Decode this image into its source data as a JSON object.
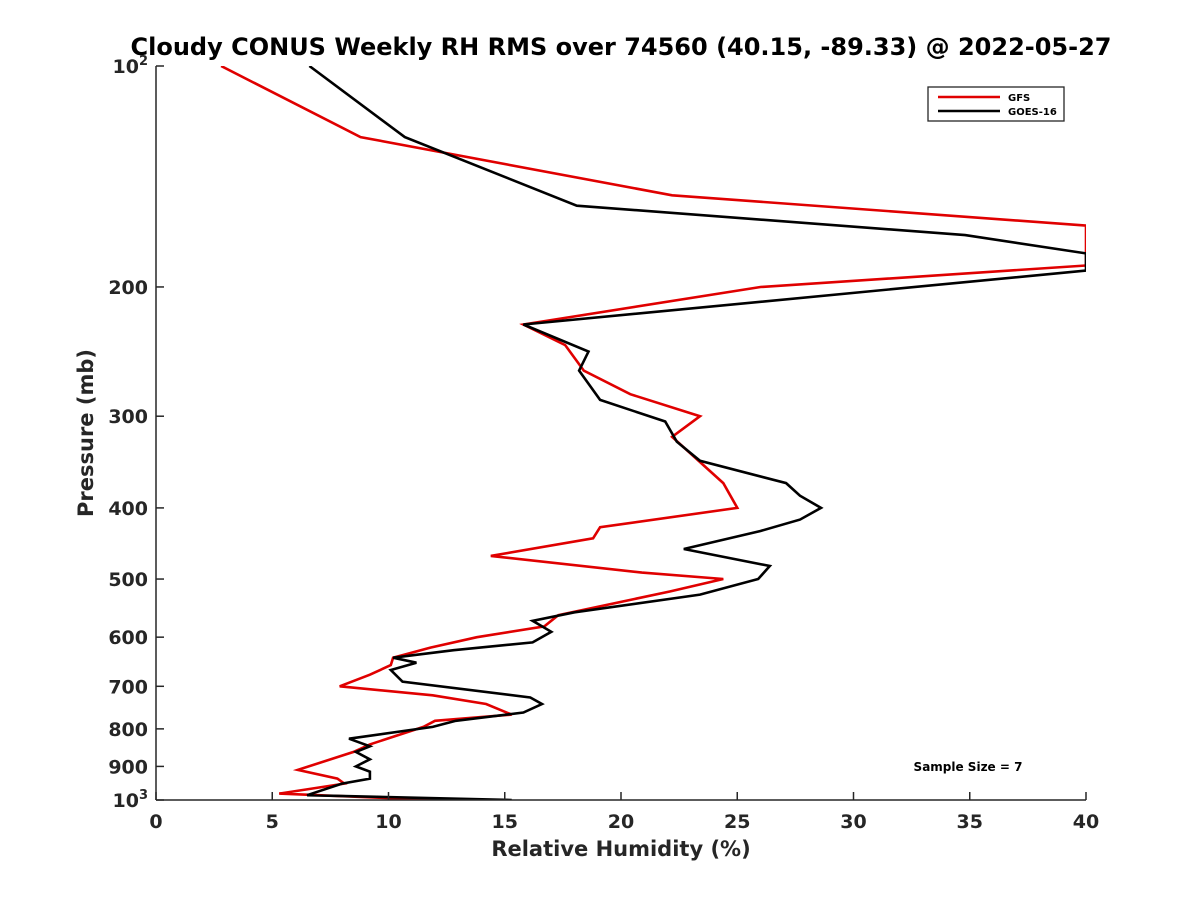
{
  "chart_data": {
    "type": "line",
    "title": "Cloudy CONUS Weekly RH RMS over 74560 (40.15, -89.33) @ 2022-05-27",
    "xlabel": "Relative Humidity (%)",
    "ylabel": "Pressure (mb)",
    "xlim": [
      0,
      40
    ],
    "ylim": [
      100,
      1000
    ],
    "y_scale": "log",
    "y_reversed": true,
    "grid": false,
    "legend_position": "top-right",
    "x_ticks": [
      "0",
      "5",
      "10",
      "15",
      "20",
      "25",
      "30",
      "35",
      "40"
    ],
    "y_ticks": [
      {
        "value": 100,
        "base": "10",
        "exp": "2"
      },
      {
        "value": 200,
        "label": "200"
      },
      {
        "value": 300,
        "label": "300"
      },
      {
        "value": 400,
        "label": "400"
      },
      {
        "value": 500,
        "label": "500"
      },
      {
        "value": 600,
        "label": "600"
      },
      {
        "value": 700,
        "label": "700"
      },
      {
        "value": 800,
        "label": "800"
      },
      {
        "value": 900,
        "label": "900"
      },
      {
        "value": 1000,
        "base": "10",
        "exp": "3"
      }
    ],
    "annotation": "Sample Size = 7",
    "series": [
      {
        "name": "GFS",
        "color": "#e00000",
        "points": [
          [
            2.8,
            100
          ],
          [
            8.8,
            125
          ],
          [
            22.2,
            150
          ],
          [
            40,
            165
          ],
          [
            40,
            187
          ],
          [
            26,
            200
          ],
          [
            15.8,
            225
          ],
          [
            17.6,
            240
          ],
          [
            18.4,
            260
          ],
          [
            20.4,
            280
          ],
          [
            23.4,
            300
          ],
          [
            22.2,
            320
          ],
          [
            24.4,
            370
          ],
          [
            25,
            400
          ],
          [
            19.1,
            425
          ],
          [
            18.8,
            440
          ],
          [
            14.4,
            465
          ],
          [
            20.9,
            490
          ],
          [
            24.4,
            500
          ],
          [
            22.1,
            520
          ],
          [
            17.3,
            560
          ],
          [
            16.7,
            580
          ],
          [
            13.8,
            600
          ],
          [
            11.8,
            620
          ],
          [
            10.2,
            640
          ],
          [
            10.1,
            655
          ],
          [
            9.2,
            675
          ],
          [
            7.9,
            700
          ],
          [
            11.9,
            720
          ],
          [
            14.2,
            740
          ],
          [
            15.3,
            765
          ],
          [
            12,
            780
          ],
          [
            11.5,
            795
          ],
          [
            9.2,
            840
          ],
          [
            8.5,
            860
          ],
          [
            6.1,
            910
          ],
          [
            7.8,
            935
          ],
          [
            8.1,
            950
          ],
          [
            5.3,
            980
          ],
          [
            12,
            1000
          ]
        ]
      },
      {
        "name": "GOES-16",
        "color": "#000000",
        "points": [
          [
            6.6,
            100
          ],
          [
            10.7,
            125
          ],
          [
            18.1,
            155
          ],
          [
            34.8,
            170
          ],
          [
            40,
            180
          ],
          [
            40,
            190
          ],
          [
            15.8,
            225
          ],
          [
            18.6,
            245
          ],
          [
            18.2,
            260
          ],
          [
            19.1,
            285
          ],
          [
            21.9,
            305
          ],
          [
            22.4,
            325
          ],
          [
            23.4,
            345
          ],
          [
            27.1,
            370
          ],
          [
            27.7,
            385
          ],
          [
            28.6,
            400
          ],
          [
            27.7,
            415
          ],
          [
            26,
            430
          ],
          [
            22.7,
            455
          ],
          [
            26.4,
            480
          ],
          [
            25.9,
            500
          ],
          [
            23.4,
            525
          ],
          [
            18,
            555
          ],
          [
            16.2,
            570
          ],
          [
            17,
            590
          ],
          [
            16.2,
            610
          ],
          [
            12.8,
            625
          ],
          [
            10.2,
            640
          ],
          [
            11.2,
            650
          ],
          [
            10.1,
            665
          ],
          [
            10.6,
            690
          ],
          [
            16.1,
            725
          ],
          [
            16.6,
            740
          ],
          [
            15.8,
            760
          ],
          [
            12.9,
            780
          ],
          [
            11.9,
            795
          ],
          [
            8.3,
            825
          ],
          [
            9.2,
            845
          ],
          [
            8.6,
            860
          ],
          [
            9.2,
            880
          ],
          [
            8.6,
            900
          ],
          [
            9.2,
            915
          ],
          [
            9.2,
            935
          ],
          [
            8,
            950
          ],
          [
            6.5,
            985
          ],
          [
            15.3,
            1000
          ]
        ]
      }
    ]
  }
}
